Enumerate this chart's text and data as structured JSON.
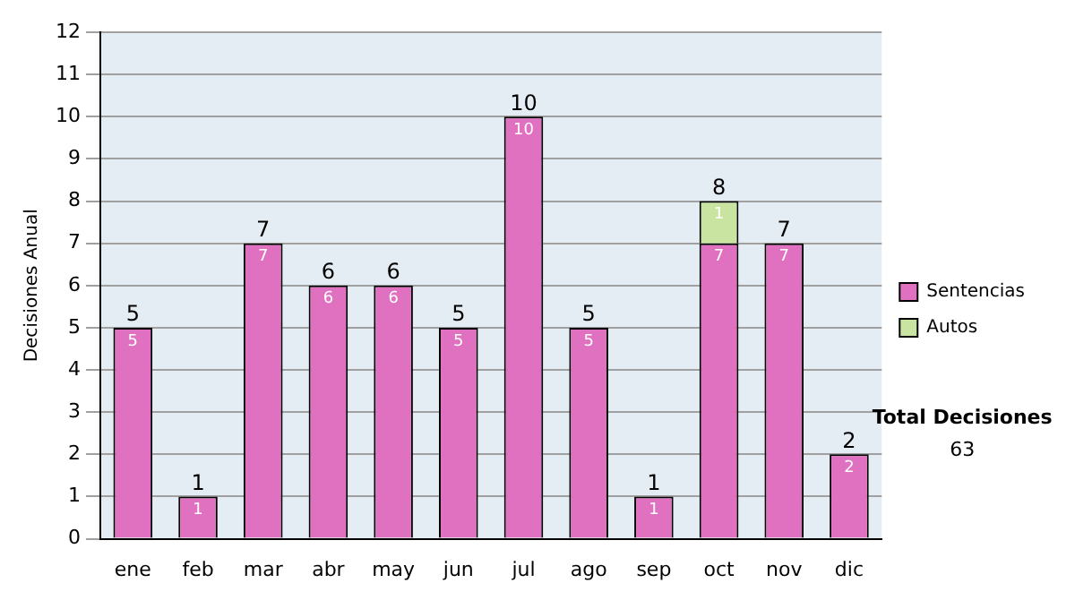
{
  "chart_data": {
    "type": "bar",
    "stacked": true,
    "ylabel": "Decisiones Anual",
    "categories": [
      "ene",
      "feb",
      "mar",
      "abr",
      "may",
      "jun",
      "jul",
      "ago",
      "sep",
      "oct",
      "nov",
      "dic"
    ],
    "series": [
      {
        "name": "Sentencias",
        "color": "#e070c0",
        "values": [
          5,
          1,
          7,
          6,
          6,
          5,
          10,
          5,
          1,
          7,
          7,
          2
        ]
      },
      {
        "name": "Autos",
        "color": "#c8e4a0",
        "values": [
          null,
          null,
          null,
          null,
          null,
          null,
          null,
          null,
          null,
          1,
          null,
          null
        ]
      }
    ],
    "ylim": [
      0,
      12
    ],
    "yticks": [
      0,
      1,
      2,
      3,
      4,
      5,
      6,
      7,
      8,
      9,
      10,
      11,
      12
    ],
    "grid": "y",
    "legend": "right",
    "data_labels": true,
    "totals": [
      "5",
      "1",
      "7",
      "6",
      "6",
      "5",
      "10",
      "5",
      "1",
      "8",
      "7",
      "2"
    ],
    "annotations": [
      "Total Decisiones",
      "63"
    ]
  }
}
